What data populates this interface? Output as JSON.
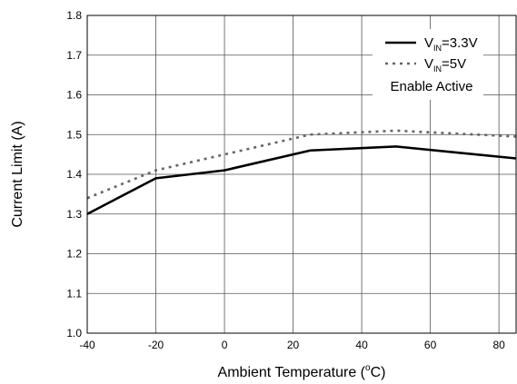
{
  "chart_data": {
    "type": "line",
    "title": "",
    "xlabel": {
      "prefix": "Ambient Temperature (",
      "sup": "o",
      "suffix": "C)"
    },
    "ylabel": "Current Limit (A)",
    "xlim": [
      -40,
      85
    ],
    "ylim": [
      1.0,
      1.8
    ],
    "xticks": [
      -40,
      -20,
      0,
      20,
      40,
      60,
      80
    ],
    "yticks": [
      1.0,
      1.1,
      1.2,
      1.3,
      1.4,
      1.5,
      1.6,
      1.7,
      1.8
    ],
    "xtick_labels": [
      "-40",
      "-20",
      "0",
      "20",
      "40",
      "60",
      "80"
    ],
    "ytick_labels": [
      "1.0",
      "1.1",
      "1.2",
      "1.3",
      "1.4",
      "1.5",
      "1.6",
      "1.7",
      "1.8"
    ],
    "grid": true,
    "legend_position": "top-right",
    "series": [
      {
        "name": {
          "main": "V",
          "sub": "IN",
          "rest": "=3.3V"
        },
        "style": "solid",
        "color": "#000000",
        "x": [
          -40,
          -20,
          0,
          25,
          50,
          85
        ],
        "y": [
          1.3,
          1.39,
          1.41,
          1.46,
          1.47,
          1.44
        ]
      },
      {
        "name": {
          "main": "V",
          "sub": "IN",
          "rest": "=5V"
        },
        "style": "dotted",
        "color": "#666666",
        "x": [
          -40,
          -20,
          0,
          25,
          50,
          85
        ],
        "y": [
          1.34,
          1.41,
          1.45,
          1.5,
          1.51,
          1.495
        ]
      }
    ],
    "legend_note": "Enable Active"
  }
}
